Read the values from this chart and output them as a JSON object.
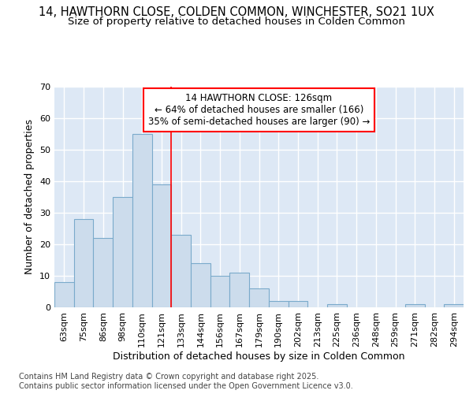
{
  "title_line1": "14, HAWTHORN CLOSE, COLDEN COMMON, WINCHESTER, SO21 1UX",
  "title_line2": "Size of property relative to detached houses in Colden Common",
  "xlabel": "Distribution of detached houses by size in Colden Common",
  "ylabel": "Number of detached properties",
  "categories": [
    "63sqm",
    "75sqm",
    "86sqm",
    "98sqm",
    "110sqm",
    "121sqm",
    "133sqm",
    "144sqm",
    "156sqm",
    "167sqm",
    "179sqm",
    "190sqm",
    "202sqm",
    "213sqm",
    "225sqm",
    "236sqm",
    "248sqm",
    "259sqm",
    "271sqm",
    "282sqm",
    "294sqm"
  ],
  "values": [
    8,
    28,
    22,
    35,
    55,
    39,
    23,
    14,
    10,
    11,
    6,
    2,
    2,
    0,
    1,
    0,
    0,
    0,
    1,
    0,
    1
  ],
  "bar_color": "#ccdcec",
  "bar_edge_color": "#7aaacb",
  "background_color": "#dde8f5",
  "grid_color": "#ffffff",
  "vline_x": 5.5,
  "vline_color": "red",
  "vline_lw": 1.2,
  "annotation_text_line1": "14 HAWTHORN CLOSE: 126sqm",
  "annotation_text_line2": "← 64% of detached houses are smaller (166)",
  "annotation_text_line3": "35% of semi-detached houses are larger (90) →",
  "ylim": [
    0,
    70
  ],
  "yticks": [
    0,
    10,
    20,
    30,
    40,
    50,
    60,
    70
  ],
  "footnote": "Contains HM Land Registry data © Crown copyright and database right 2025.\nContains public sector information licensed under the Open Government Licence v3.0.",
  "title_fontsize": 10.5,
  "subtitle_fontsize": 9.5,
  "axis_label_fontsize": 9,
  "tick_fontsize": 8,
  "annot_fontsize": 8.5,
  "footnote_fontsize": 7
}
